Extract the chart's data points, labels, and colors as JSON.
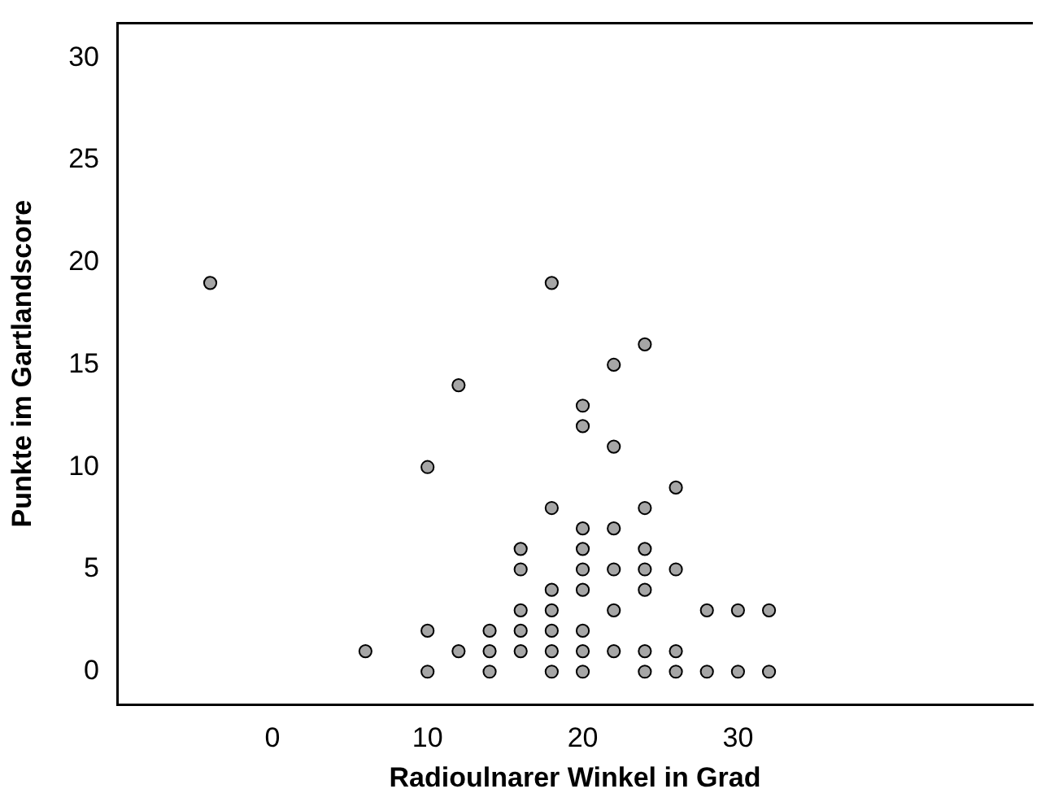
{
  "chart_data": {
    "type": "scatter",
    "xlabel": "Radioulnarer Winkel in Grad",
    "ylabel": "Punkte im Gartlandscore",
    "xlim": [
      -10,
      49
    ],
    "ylim": [
      -1.6,
      31.7
    ],
    "xticks": [
      0,
      10,
      20,
      30
    ],
    "yticks": [
      0,
      5,
      10,
      15,
      20,
      25,
      30
    ],
    "grid": false,
    "legend": false,
    "marker": "circle",
    "series": [
      {
        "color": "#a6a6a6",
        "x": [
          -4,
          18,
          24,
          22,
          12,
          20,
          20,
          22,
          10,
          26,
          18,
          24,
          20,
          22,
          16,
          20,
          24,
          16,
          20,
          22,
          24,
          26,
          18,
          20,
          24,
          16,
          18,
          22,
          28,
          30,
          32,
          10,
          14,
          16,
          18,
          20,
          6,
          12,
          14,
          16,
          18,
          20,
          22,
          24,
          26,
          10,
          14,
          18,
          20,
          24,
          26,
          28,
          30,
          32
        ],
        "values": [
          19,
          19,
          16,
          15,
          14,
          13,
          12,
          11,
          10,
          9,
          8,
          8,
          7,
          7,
          6,
          6,
          6,
          5,
          5,
          5,
          5,
          5,
          4,
          4,
          4,
          3,
          3,
          3,
          3,
          3,
          3,
          2,
          2,
          2,
          2,
          2,
          1,
          1,
          1,
          1,
          1,
          1,
          1,
          1,
          1,
          0,
          0,
          0,
          0,
          0,
          0,
          0,
          0,
          0
        ]
      }
    ]
  }
}
